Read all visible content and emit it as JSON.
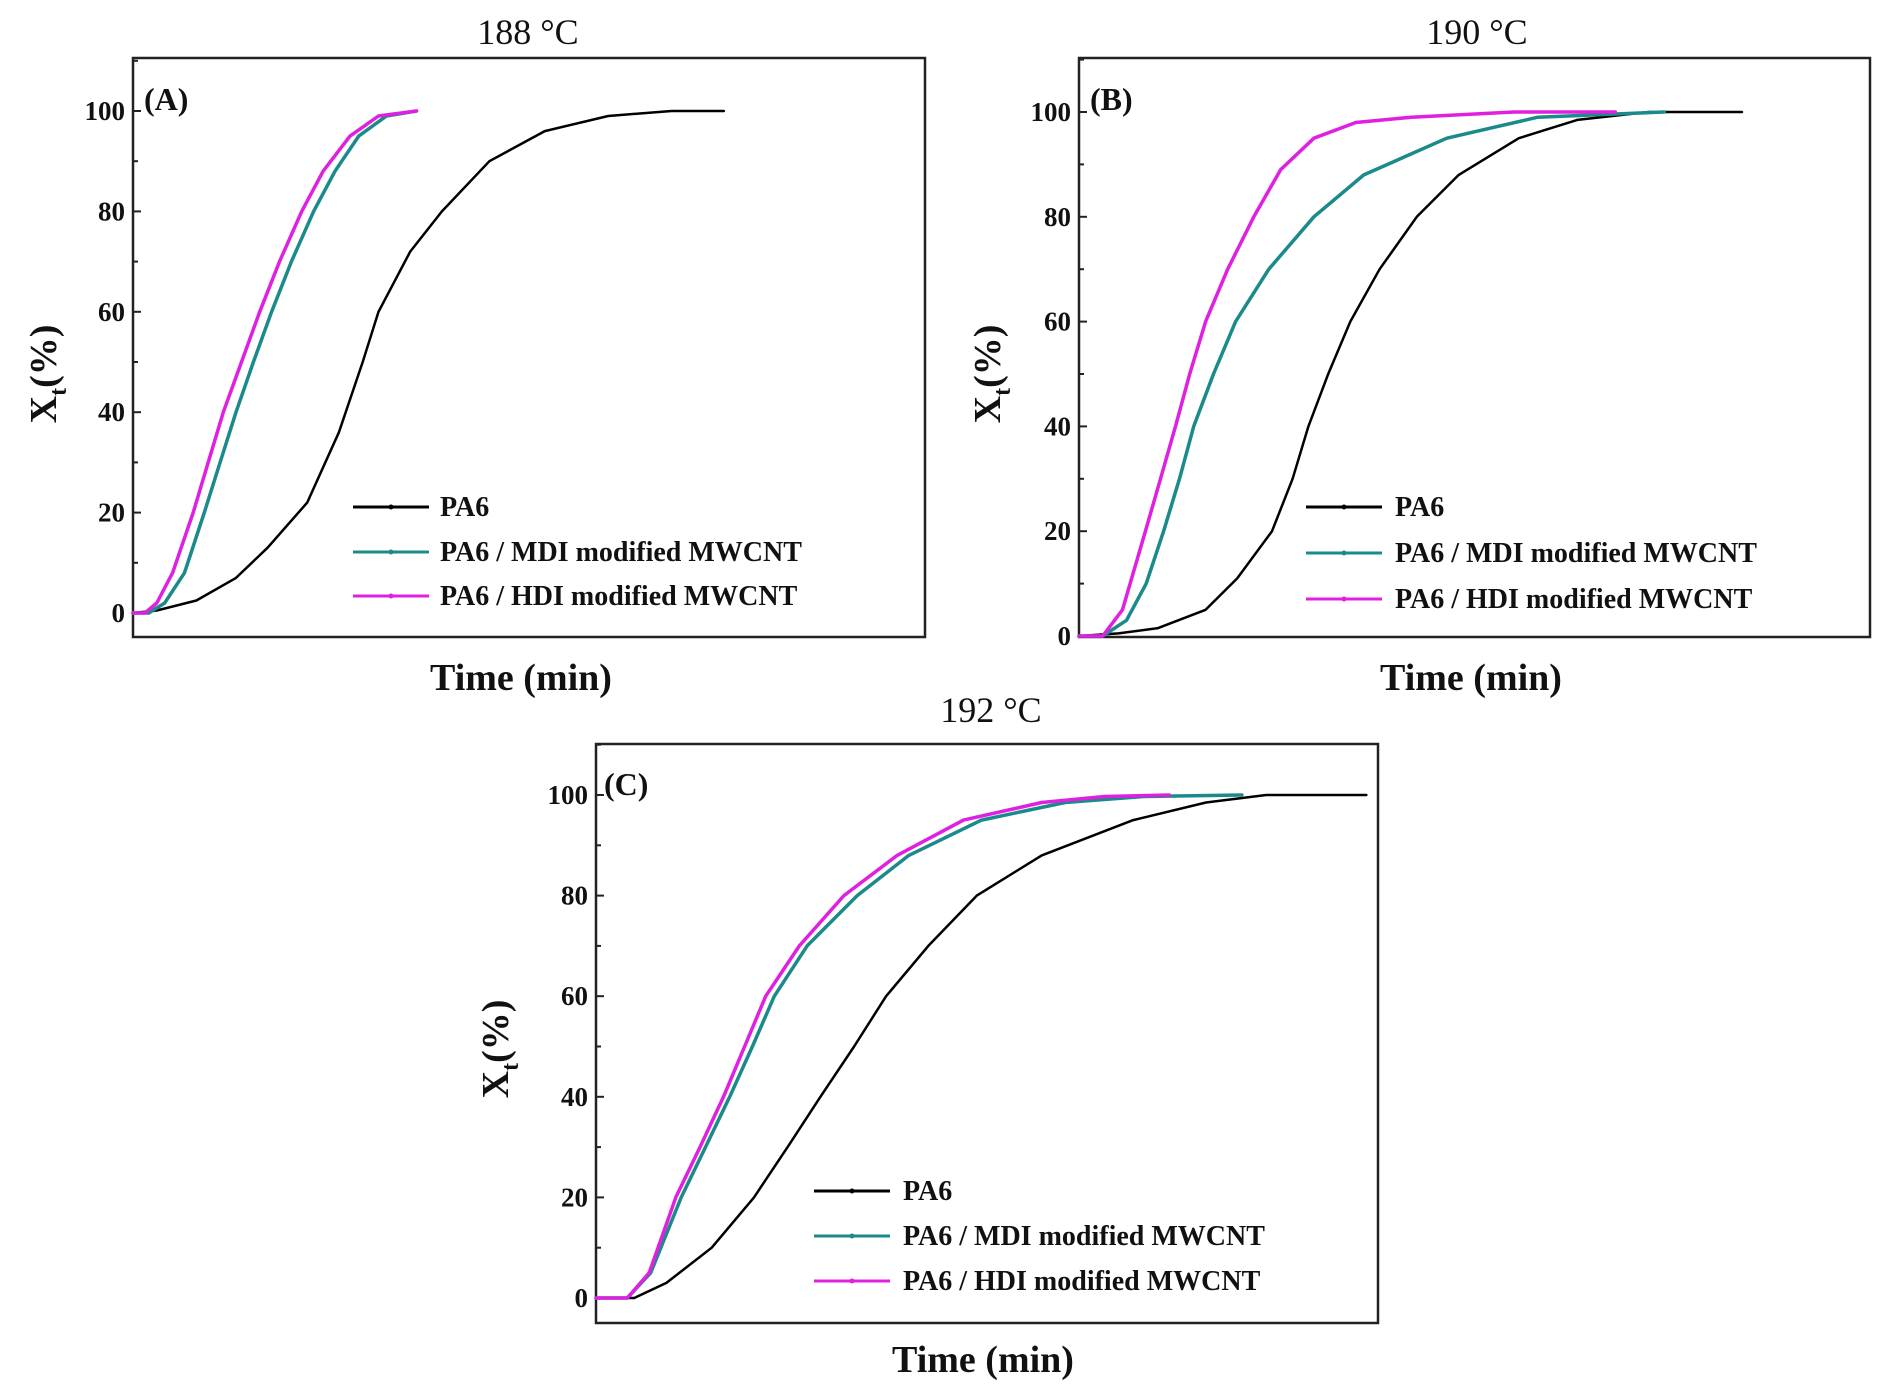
{
  "colors": {
    "PA6": "#000000",
    "MDI": "#1b8a8a",
    "HDI": "#e020e0"
  },
  "chart_data": [
    {
      "type": "line",
      "panel_label": "(A)",
      "title": "188 °C",
      "xlabel": "Time (min)",
      "ylabel": "Xt(%)",
      "ylabel_main": "X",
      "ylabel_sub": "t",
      "ylabel_rest": "(%)",
      "xlim": [
        0,
        100
      ],
      "ylim": [
        -5,
        110
      ],
      "yticks": [
        0,
        20,
        40,
        60,
        80,
        100
      ],
      "grid": false,
      "legend_position": "bottom-right",
      "series": [
        {
          "name": "PA6",
          "color_key": "PA6",
          "points": [
            [
              0,
              0
            ],
            [
              3,
              0.5
            ],
            [
              8,
              2.5
            ],
            [
              13,
              7
            ],
            [
              17,
              13
            ],
            [
              22,
              22
            ],
            [
              26,
              36
            ],
            [
              29,
              50
            ],
            [
              31,
              60
            ],
            [
              35,
              72
            ],
            [
              39,
              80
            ],
            [
              45,
              90
            ],
            [
              52,
              96
            ],
            [
              60,
              99
            ],
            [
              68,
              100
            ],
            [
              74.6,
              100
            ]
          ]
        },
        {
          "name": "PA6 / MDI modified MWCNT",
          "color_key": "MDI",
          "points": [
            [
              0,
              0
            ],
            [
              2,
              0
            ],
            [
              4,
              2
            ],
            [
              6.5,
              8
            ],
            [
              9,
              20
            ],
            [
              11,
              30
            ],
            [
              13,
              40
            ],
            [
              15.2,
              50
            ],
            [
              17.5,
              60
            ],
            [
              20,
              70
            ],
            [
              22.8,
              80
            ],
            [
              25.5,
              88
            ],
            [
              28.5,
              95
            ],
            [
              32,
              99
            ],
            [
              35.8,
              100
            ]
          ]
        },
        {
          "name": "PA6 / HDI modified MWCNT",
          "color_key": "HDI",
          "points": [
            [
              0,
              0
            ],
            [
              1.5,
              0
            ],
            [
              3,
              2
            ],
            [
              5,
              8
            ],
            [
              7.6,
              20
            ],
            [
              9.5,
              30
            ],
            [
              11.4,
              40
            ],
            [
              13.7,
              50
            ],
            [
              16,
              60
            ],
            [
              18.5,
              70
            ],
            [
              21.3,
              80
            ],
            [
              24,
              88
            ],
            [
              27.4,
              95
            ],
            [
              31,
              99
            ],
            [
              35.8,
              100
            ]
          ]
        }
      ]
    },
    {
      "type": "line",
      "panel_label": "(B)",
      "title": "190 °C",
      "xlabel": "Time (min)",
      "ylabel": "Xt(%)",
      "ylabel_main": "X",
      "ylabel_sub": "t",
      "ylabel_rest": "(%)",
      "xlim": [
        0,
        100
      ],
      "ylim": [
        0,
        110
      ],
      "yticks": [
        0,
        20,
        40,
        60,
        80,
        100
      ],
      "grid": false,
      "legend_position": "bottom-right",
      "series": [
        {
          "name": "PA6",
          "color_key": "PA6",
          "points": [
            [
              0,
              0
            ],
            [
              5,
              0.5
            ],
            [
              10,
              1.5
            ],
            [
              16,
              5
            ],
            [
              20,
              11
            ],
            [
              24.4,
              20
            ],
            [
              27,
              30
            ],
            [
              29,
              40
            ],
            [
              31.5,
              50
            ],
            [
              34.3,
              60
            ],
            [
              38,
              70
            ],
            [
              42.7,
              80
            ],
            [
              48,
              88
            ],
            [
              55.6,
              95
            ],
            [
              63,
              98.5
            ],
            [
              72,
              100
            ],
            [
              83.8,
              100
            ]
          ]
        },
        {
          "name": "PA6 / MDI modified MWCNT",
          "color_key": "MDI",
          "points": [
            [
              0,
              0
            ],
            [
              3,
              0
            ],
            [
              6,
              3
            ],
            [
              8.5,
              10
            ],
            [
              10.7,
              20
            ],
            [
              12.7,
              30
            ],
            [
              14.5,
              40
            ],
            [
              17,
              50
            ],
            [
              19.8,
              60
            ],
            [
              24,
              70
            ],
            [
              29.7,
              80
            ],
            [
              36,
              88
            ],
            [
              46.5,
              95
            ],
            [
              58,
              99
            ],
            [
              74,
              100
            ]
          ]
        },
        {
          "name": "PA6 / HDI modified MWCNT",
          "color_key": "HDI",
          "points": [
            [
              0,
              0
            ],
            [
              3,
              0
            ],
            [
              5.5,
              5
            ],
            [
              8.4,
              20
            ],
            [
              10.3,
              30
            ],
            [
              12.2,
              40
            ],
            [
              14,
              50
            ],
            [
              16,
              60
            ],
            [
              18.8,
              70
            ],
            [
              22.1,
              80
            ],
            [
              25.5,
              89
            ],
            [
              29.7,
              95
            ],
            [
              35,
              98
            ],
            [
              42,
              99
            ],
            [
              55,
              100
            ],
            [
              67.8,
              100
            ]
          ]
        }
      ]
    },
    {
      "type": "line",
      "panel_label": "(C)",
      "title": "192 °C",
      "xlabel": "Time (min)",
      "ylabel": "Xt(%)",
      "ylabel_main": "X",
      "ylabel_sub": "t",
      "ylabel_rest": "(%)",
      "xlim": [
        0,
        100
      ],
      "ylim": [
        -5,
        110
      ],
      "yticks": [
        0,
        20,
        40,
        60,
        80,
        100
      ],
      "grid": false,
      "legend_position": "bottom-right",
      "series": [
        {
          "name": "PA6",
          "color_key": "PA6",
          "points": [
            [
              0,
              0
            ],
            [
              4.9,
              0
            ],
            [
              9,
              3
            ],
            [
              14.8,
              10
            ],
            [
              20.2,
              20
            ],
            [
              24.5,
              30
            ],
            [
              28.7,
              40
            ],
            [
              33,
              50
            ],
            [
              37.1,
              60
            ],
            [
              42.5,
              70
            ],
            [
              48.7,
              80
            ],
            [
              57,
              88
            ],
            [
              68.7,
              95
            ],
            [
              78,
              98.5
            ],
            [
              85.7,
              100
            ],
            [
              98.5,
              100
            ]
          ]
        },
        {
          "name": "PA6 / MDI modified MWCNT",
          "color_key": "MDI",
          "points": [
            [
              0,
              0
            ],
            [
              4,
              0
            ],
            [
              7,
              5
            ],
            [
              10.9,
              20
            ],
            [
              14,
              30
            ],
            [
              17.1,
              40
            ],
            [
              20,
              50
            ],
            [
              22.8,
              60
            ],
            [
              27,
              70
            ],
            [
              33.4,
              80
            ],
            [
              40,
              88
            ],
            [
              49.3,
              95
            ],
            [
              60,
              98.5
            ],
            [
              70,
              99.7
            ],
            [
              82.6,
              100
            ]
          ]
        },
        {
          "name": "PA6 / HDI modified MWCNT",
          "color_key": "HDI",
          "points": [
            [
              0,
              0
            ],
            [
              4,
              0
            ],
            [
              6.8,
              5
            ],
            [
              10.2,
              20
            ],
            [
              13.3,
              30
            ],
            [
              16.3,
              40
            ],
            [
              19,
              50
            ],
            [
              21.7,
              60
            ],
            [
              26,
              70
            ],
            [
              31.7,
              80
            ],
            [
              38.5,
              88
            ],
            [
              47,
              95
            ],
            [
              57,
              98.5
            ],
            [
              65,
              99.7
            ],
            [
              73.3,
              100
            ]
          ]
        }
      ]
    }
  ]
}
